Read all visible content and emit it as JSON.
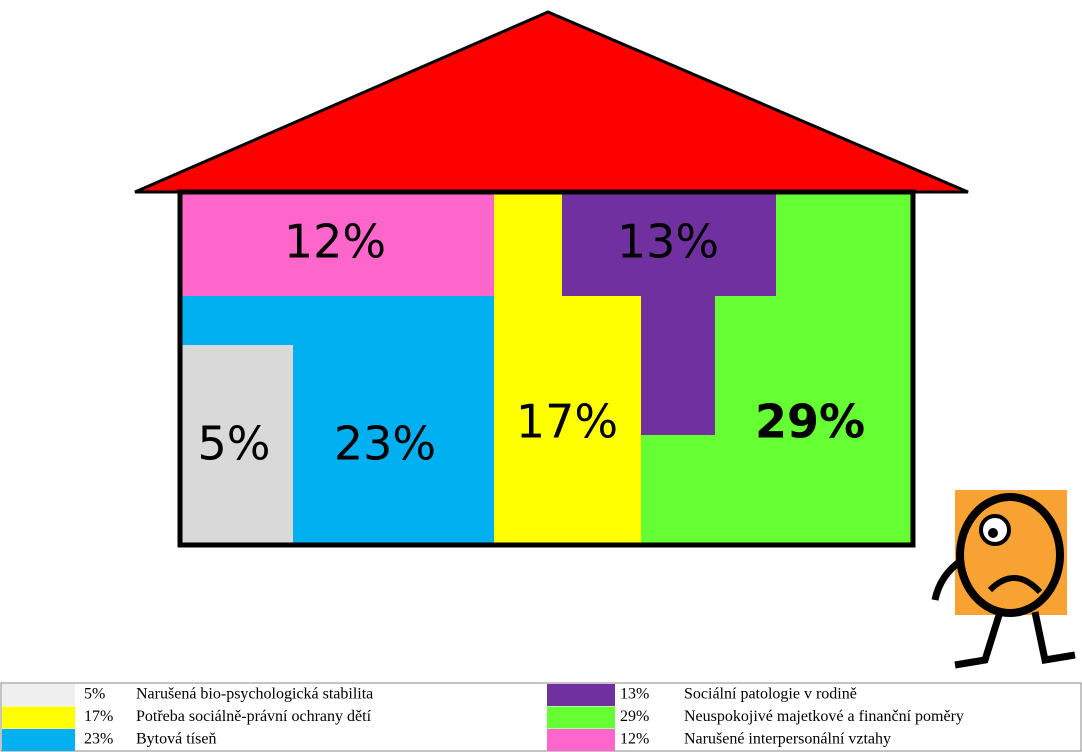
{
  "chart_data": {
    "type": "house",
    "categories": [
      "Narušená bio-psychologická stabilita",
      "Potřeba sociálně-právní ochrany dětí",
      "Bytová tíseň",
      "Sociální patologie v rodině",
      "Neuspokojivé majetkové a finanční poměry",
      "Narušené interpersonální vztahy"
    ],
    "values": [
      5,
      17,
      23,
      13,
      29,
      12
    ],
    "value_labels": [
      "5%",
      "17%",
      "23%",
      "13%",
      "29%",
      "12%"
    ],
    "colors": [
      "#d9d9d9",
      "#ffff00",
      "#00b0f0",
      "#7030a0",
      "#66ff33",
      "#ff66cc"
    ]
  }
}
